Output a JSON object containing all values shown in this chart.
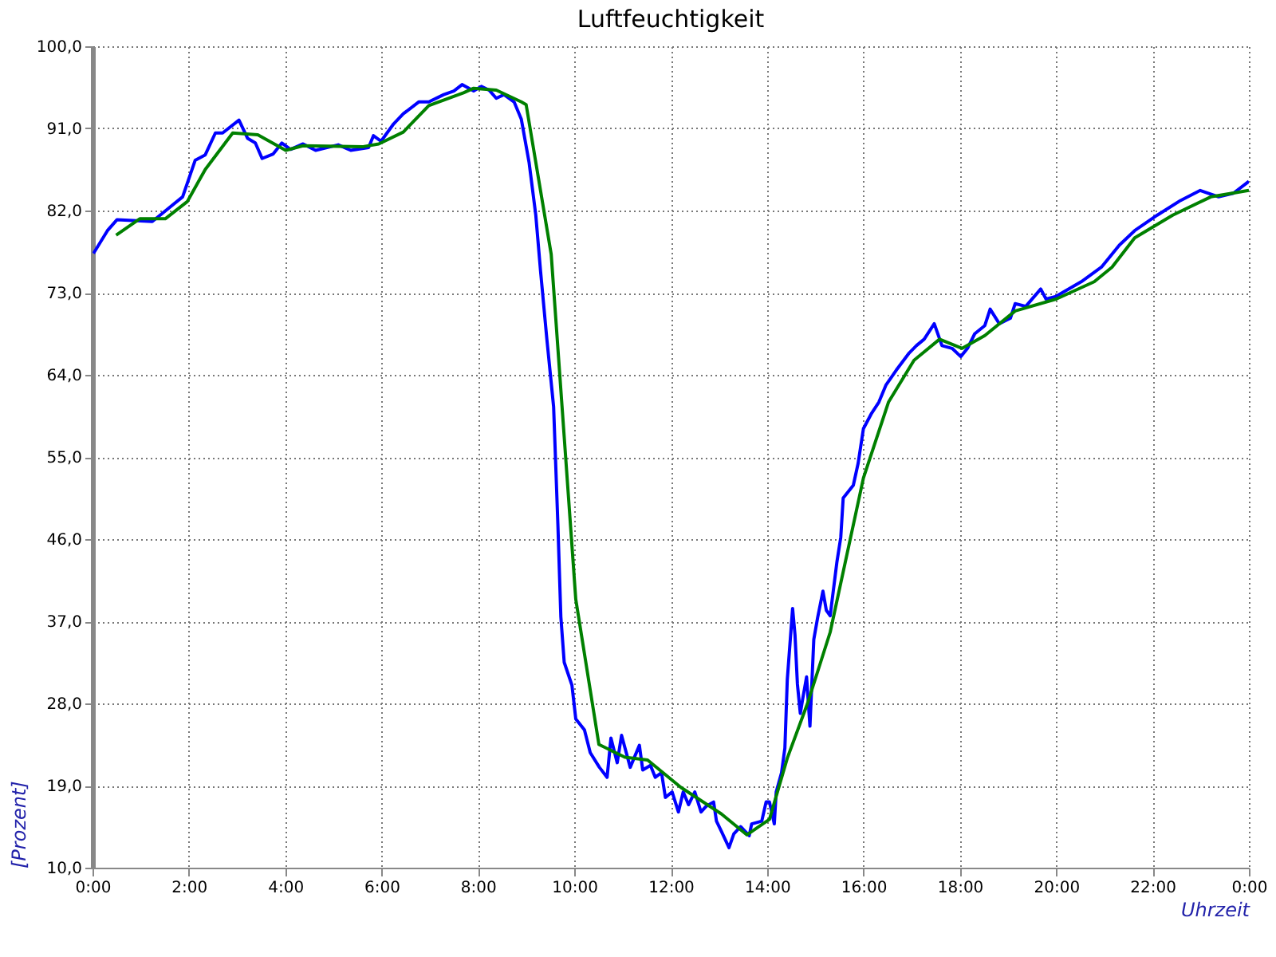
{
  "chart_data": {
    "type": "line",
    "title": "Luftfeuchtigkeit",
    "xlabel": "Uhrzeit",
    "ylabel": "[Prozent]",
    "xlim": [
      0,
      24
    ],
    "ylim": [
      10,
      100
    ],
    "xticks": [
      {
        "value": 0,
        "label": "0:00"
      },
      {
        "value": 2,
        "label": "2:00"
      },
      {
        "value": 4,
        "label": "4:00"
      },
      {
        "value": 6,
        "label": "6:00"
      },
      {
        "value": 8,
        "label": "8:00"
      },
      {
        "value": 10,
        "label": "10:00"
      },
      {
        "value": 12,
        "label": "12:00"
      },
      {
        "value": 14,
        "label": "14:00"
      },
      {
        "value": 16,
        "label": "16:00"
      },
      {
        "value": 18,
        "label": "18:00"
      },
      {
        "value": 20,
        "label": "20:00"
      },
      {
        "value": 22,
        "label": "22:00"
      },
      {
        "value": 24,
        "label": "0:00"
      }
    ],
    "yticks": [
      {
        "value": 10,
        "label": "10,0"
      },
      {
        "value": 19,
        "label": "19,0"
      },
      {
        "value": 28,
        "label": "28,0"
      },
      {
        "value": 37,
        "label": "37,0"
      },
      {
        "value": 46,
        "label": "46,0"
      },
      {
        "value": 55,
        "label": "55,0"
      },
      {
        "value": 64,
        "label": "64,0"
      },
      {
        "value": 73,
        "label": "73,0"
      },
      {
        "value": 82,
        "label": "82,0"
      },
      {
        "value": 91,
        "label": "91,0"
      },
      {
        "value": 100,
        "label": "100,0"
      }
    ],
    "grid": true,
    "marker": "none",
    "line_style": "solid",
    "series": [
      {
        "color": "#0000ff",
        "x": [
          0.02,
          0.31,
          0.51,
          1.24,
          1.45,
          1.87,
          2.13,
          2.34,
          2.55,
          2.7,
          3.04,
          3.22,
          3.38,
          3.52,
          3.75,
          3.93,
          4.11,
          4.37,
          4.63,
          5.1,
          5.36,
          5.73,
          5.83,
          5.99,
          6.25,
          6.45,
          6.77,
          6.98,
          7.29,
          7.5,
          7.67,
          7.91,
          8.07,
          8.23,
          8.38,
          8.54,
          8.75,
          8.9,
          9.06,
          9.2,
          9.3,
          9.43,
          9.57,
          9.66,
          9.72,
          9.79,
          9.95,
          10.03,
          10.21,
          10.33,
          10.52,
          10.68,
          10.76,
          10.89,
          10.98,
          11.16,
          11.35,
          11.42,
          11.58,
          11.68,
          11.81,
          11.89,
          12.03,
          12.16,
          12.26,
          12.37,
          12.5,
          12.63,
          12.73,
          12.89,
          12.95,
          13.05,
          13.21,
          13.31,
          13.45,
          13.63,
          13.68,
          13.89,
          13.98,
          14.05,
          14.15,
          14.19,
          14.3,
          14.37,
          14.42,
          14.53,
          14.58,
          14.63,
          14.69,
          14.74,
          14.82,
          14.89,
          14.97,
          15.05,
          15.16,
          15.23,
          15.31,
          15.45,
          15.53,
          15.58,
          15.79,
          15.89,
          16.0,
          16.16,
          16.32,
          16.47,
          16.68,
          16.95,
          17.1,
          17.26,
          17.47,
          17.63,
          17.84,
          18.02,
          18.16,
          18.31,
          18.52,
          18.63,
          18.82,
          19.05,
          19.15,
          19.37,
          19.68,
          19.79,
          20.0,
          20.52,
          20.94,
          21.31,
          21.63,
          22.1,
          22.58,
          22.99,
          23.37,
          23.68,
          24.0
        ],
        "values": [
          77.3,
          79.8,
          81.0,
          80.8,
          81.7,
          83.5,
          87.5,
          88.1,
          90.5,
          90.5,
          91.9,
          89.9,
          89.4,
          87.7,
          88.2,
          89.4,
          88.7,
          89.3,
          88.6,
          89.2,
          88.6,
          88.9,
          90.2,
          89.6,
          91.5,
          92.6,
          93.9,
          93.9,
          94.7,
          95.1,
          95.8,
          95.1,
          95.6,
          95.2,
          94.3,
          94.7,
          93.9,
          92.0,
          87.3,
          81.5,
          75.3,
          67.9,
          60.5,
          47.4,
          37.5,
          32.5,
          30.0,
          26.3,
          25.1,
          22.6,
          21.0,
          19.9,
          24.2,
          21.5,
          24.5,
          21.0,
          23.4,
          20.7,
          21.2,
          19.9,
          20.4,
          17.7,
          18.3,
          16.1,
          18.3,
          16.9,
          18.3,
          16.1,
          16.7,
          17.2,
          15.1,
          14.0,
          12.2,
          13.7,
          14.5,
          13.5,
          14.8,
          15.1,
          17.2,
          17.2,
          14.8,
          18.3,
          20.4,
          23.1,
          30.6,
          38.4,
          35.5,
          30.1,
          26.9,
          28.5,
          30.9,
          25.5,
          35.0,
          37.4,
          40.3,
          38.2,
          37.6,
          43.5,
          46.2,
          50.5,
          51.9,
          54.3,
          58.1,
          59.7,
          61.0,
          62.9,
          64.5,
          66.4,
          67.2,
          67.9,
          69.6,
          67.2,
          66.9,
          66.0,
          66.9,
          68.5,
          69.4,
          71.2,
          69.6,
          70.2,
          71.8,
          71.5,
          73.4,
          72.3,
          72.6,
          74.2,
          75.8,
          78.2,
          79.8,
          81.5,
          83.1,
          84.2,
          83.5,
          83.9,
          85.2
        ]
      },
      {
        "color": "#008000",
        "x": [
          0.49,
          0.98,
          1.51,
          1.97,
          2.34,
          2.91,
          3.43,
          4.01,
          4.37,
          5.62,
          5.94,
          6.45,
          6.98,
          7.7,
          7.91,
          8.38,
          8.9,
          9.0,
          9.52,
          10.03,
          10.51,
          11.05,
          11.52,
          12.21,
          13.05,
          13.58,
          14.05,
          14.42,
          14.84,
          15.31,
          16.0,
          16.52,
          17.05,
          17.58,
          18.05,
          18.52,
          19.15,
          20.0,
          20.79,
          21.16,
          21.63,
          22.42,
          23.21,
          24.0
        ],
        "values": [
          79.3,
          81.1,
          81.1,
          83.0,
          86.5,
          90.5,
          90.3,
          88.6,
          89.1,
          89.0,
          89.3,
          90.6,
          93.5,
          94.9,
          95.4,
          95.2,
          93.9,
          93.6,
          77.2,
          39.4,
          23.5,
          22.1,
          21.8,
          18.8,
          15.9,
          13.6,
          15.3,
          22.0,
          28.0,
          35.8,
          52.7,
          61.0,
          65.6,
          67.9,
          66.9,
          68.3,
          71.0,
          72.3,
          74.2,
          75.8,
          79.0,
          81.5,
          83.5,
          84.2
        ]
      }
    ]
  }
}
